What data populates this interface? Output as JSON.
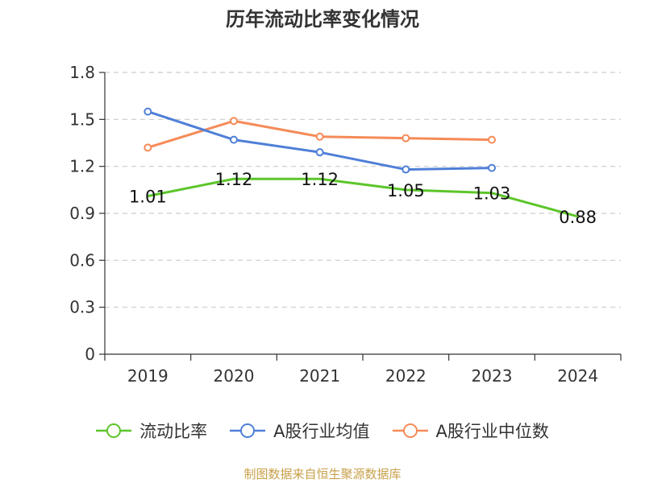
{
  "title": "历年流动比率变化情况",
  "footer": "制图数据来自恒生聚源数据库",
  "colors": {
    "axis": "#333333",
    "grid": "#cccccc",
    "tick_text": "#333333",
    "label_text": "#111111",
    "footer": "#c8a04a"
  },
  "chart_data": {
    "type": "line",
    "categories": [
      "2019",
      "2020",
      "2021",
      "2022",
      "2023",
      "2024"
    ],
    "ylim": [
      0,
      1.8
    ],
    "yticks": [
      "0",
      "0.3",
      "0.6",
      "0.9",
      "1.2",
      "1.5",
      "1.8"
    ],
    "grid": "horizontal dashed",
    "legend_position": "bottom",
    "series": [
      {
        "name": "流动比率",
        "color": "#5cc52a",
        "values": [
          1.01,
          1.12,
          1.12,
          1.05,
          1.03,
          0.88
        ],
        "labels": [
          "1.01",
          "1.12",
          "1.12",
          "1.05",
          "1.03",
          "0.88"
        ]
      },
      {
        "name": "A股行业均值",
        "color": "#4f7fd8",
        "values": [
          1.55,
          1.37,
          1.29,
          1.18,
          1.19,
          null
        ]
      },
      {
        "name": "A股行业中位数",
        "color": "#f58b58",
        "values": [
          1.32,
          1.49,
          1.39,
          1.38,
          1.37,
          null
        ]
      }
    ]
  }
}
